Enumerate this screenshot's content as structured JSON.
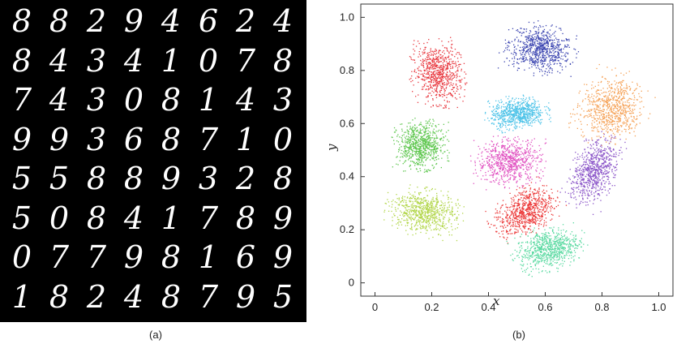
{
  "panel_a": {
    "caption": "(a)",
    "digits": [
      [
        "8",
        "8",
        "2",
        "9",
        "4",
        "6",
        "2",
        "4"
      ],
      [
        "8",
        "4",
        "3",
        "4",
        "1",
        "0",
        "7",
        "8"
      ],
      [
        "7",
        "4",
        "3",
        "0",
        "8",
        "1",
        "4",
        "3"
      ],
      [
        "9",
        "9",
        "3",
        "6",
        "8",
        "7",
        "1",
        "0"
      ],
      [
        "5",
        "5",
        "8",
        "8",
        "9",
        "3",
        "2",
        "8"
      ],
      [
        "5",
        "0",
        "8",
        "4",
        "1",
        "7",
        "8",
        "9"
      ],
      [
        "0",
        "7",
        "7",
        "9",
        "8",
        "1",
        "6",
        "9"
      ],
      [
        "1",
        "8",
        "2",
        "4",
        "8",
        "7",
        "9",
        "5"
      ]
    ]
  },
  "panel_b": {
    "caption": "(b)"
  },
  "chart_data": {
    "type": "scatter",
    "xlabel": "x",
    "ylabel": "y",
    "xlim": [
      -0.05,
      1.05
    ],
    "ylim": [
      -0.05,
      1.05
    ],
    "xticks": [
      "0",
      "0.2",
      "0.4",
      "0.6",
      "0.8",
      "1.0"
    ],
    "yticks": [
      "0",
      "0.2",
      "0.4",
      "0.6",
      "0.8",
      "1.0"
    ],
    "grid": false,
    "legend": "none",
    "clusters": [
      {
        "color": "#3a44b0",
        "center": [
          0.58,
          0.88
        ],
        "spread": [
          0.1,
          0.075
        ],
        "angle": -15
      },
      {
        "color": "#e8383f",
        "center": [
          0.22,
          0.79
        ],
        "spread": [
          0.075,
          0.1
        ],
        "angle": 10
      },
      {
        "color": "#f5a054",
        "center": [
          0.83,
          0.66
        ],
        "spread": [
          0.095,
          0.11
        ],
        "angle": -35
      },
      {
        "color": "#4ec3e8",
        "center": [
          0.5,
          0.64
        ],
        "spread": [
          0.085,
          0.05
        ],
        "angle": 8
      },
      {
        "color": "#5cc64c",
        "center": [
          0.16,
          0.52
        ],
        "spread": [
          0.075,
          0.075
        ],
        "angle": 0
      },
      {
        "color": "#e050c0",
        "center": [
          0.47,
          0.46
        ],
        "spread": [
          0.1,
          0.075
        ],
        "angle": 5
      },
      {
        "color": "#8a54c8",
        "center": [
          0.77,
          0.42
        ],
        "spread": [
          0.065,
          0.11
        ],
        "angle": -25
      },
      {
        "color": "#b2d64a",
        "center": [
          0.17,
          0.27
        ],
        "spread": [
          0.105,
          0.07
        ],
        "angle": -10
      },
      {
        "color": "#ec3a3a",
        "center": [
          0.53,
          0.27
        ],
        "spread": [
          0.1,
          0.065
        ],
        "angle": 35
      },
      {
        "color": "#58d9a0",
        "center": [
          0.61,
          0.13
        ],
        "spread": [
          0.1,
          0.065
        ],
        "angle": 15
      }
    ]
  }
}
